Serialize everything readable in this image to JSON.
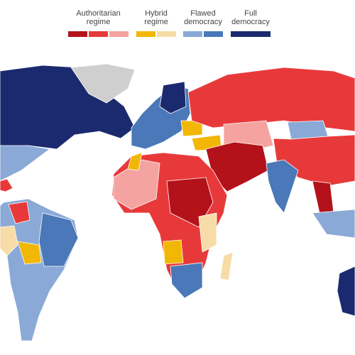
{
  "legend": {
    "items": [
      {
        "lines": [
          "Authoritarian",
          "regime"
        ],
        "colors": [
          "#b3121b",
          "#e8393a",
          "#f4a3a0"
        ]
      },
      {
        "lines": [
          "Hybrid",
          "regime"
        ],
        "colors": [
          "#f2b705",
          "#f7dca8"
        ]
      },
      {
        "lines": [
          "Flawed",
          "democracy"
        ],
        "colors": [
          "#8aa9d6",
          "#4a78b8"
        ]
      },
      {
        "lines": [
          "Full",
          "democracy"
        ],
        "colors": [
          "#1b2a6e"
        ]
      }
    ]
  }
}
